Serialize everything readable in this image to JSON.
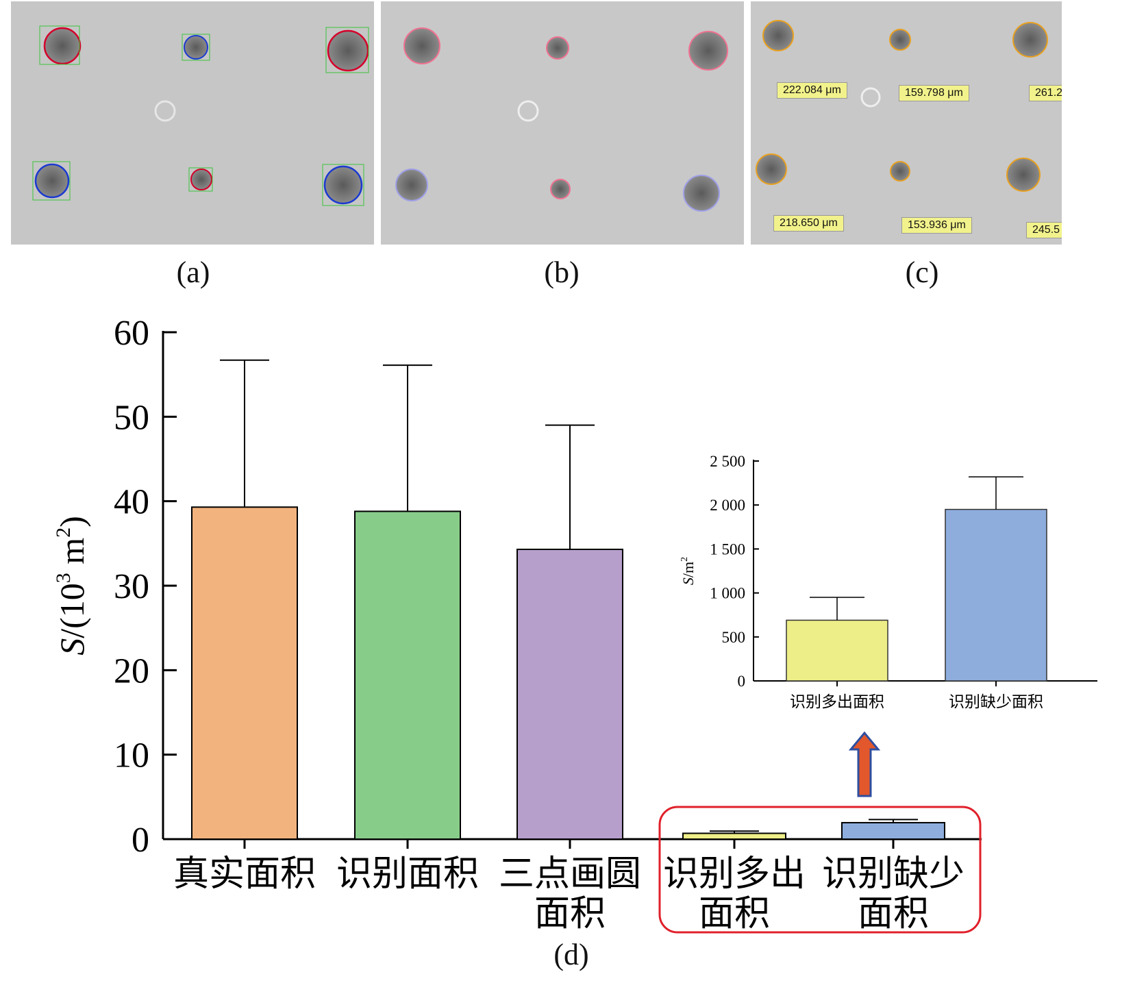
{
  "panels": {
    "a": "(a)",
    "b": "(b)",
    "c": "(c)",
    "d": "(d)"
  },
  "measurements": [
    "222.084 μm",
    "159.798 μm",
    "261.2",
    "218.650 μm",
    "153.936 μm",
    "245.5"
  ],
  "colors": {
    "orange": "#F2B37F",
    "green": "#88CC8A",
    "purple": "#B79FCB",
    "yellow": "#EEEE88",
    "blue": "#8EADDD",
    "highlight_red": "#E0202A",
    "arrow_fill": "#E2572B",
    "arrow_stroke": "#2F4FA0"
  },
  "chart_data": [
    {
      "type": "bar",
      "ylabel_var": "S",
      "ylabel_unit": "/(10",
      "ylabel_exp": "3",
      "ylabel_unit2": " m",
      "ylabel_exp2": "2",
      "ylabel_close": ")",
      "ylim": [
        0,
        60
      ],
      "yticks": [
        "0",
        "10",
        "20",
        "30",
        "40",
        "50",
        "60"
      ],
      "categories": [
        [
          "真实面积"
        ],
        [
          "识别面积"
        ],
        [
          "三点画圆",
          "面积"
        ],
        [
          "识别多出",
          "面积"
        ],
        [
          "识别缺少",
          "面积"
        ]
      ],
      "values": [
        39.3,
        38.8,
        34.3,
        0.69,
        1.95
      ],
      "errors": [
        17.4,
        17.3,
        14.7,
        0.26,
        0.37
      ]
    },
    {
      "type": "bar",
      "ylabel_var": "S",
      "ylabel_unit": "/m",
      "ylabel_exp": "2",
      "ylim": [
        0,
        2500
      ],
      "yticks": [
        "0",
        "500",
        "1 000",
        "1 500",
        "2 000",
        "2 500"
      ],
      "categories": [
        "识别多出面积",
        "识别缺少面积"
      ],
      "values": [
        690,
        1950
      ],
      "errors": [
        260,
        370
      ]
    }
  ]
}
